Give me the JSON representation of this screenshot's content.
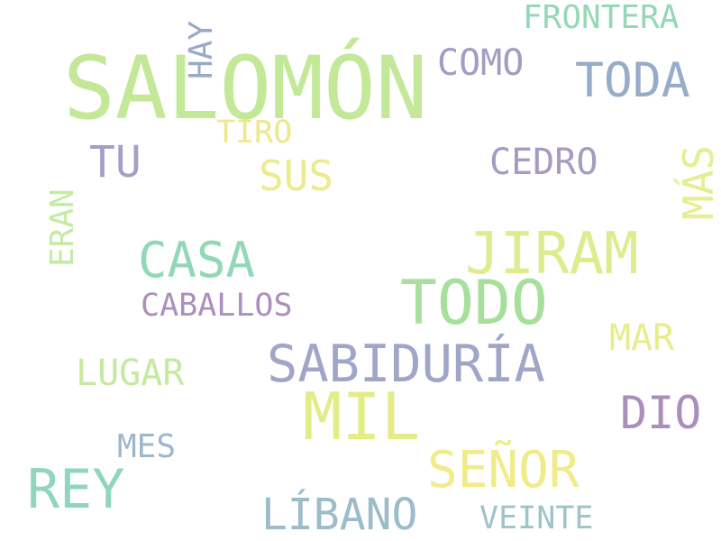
{
  "words": {
    "salomon": {
      "text": "SALOMÓN",
      "color": "#c2e898"
    },
    "todo": {
      "text": "TODO",
      "color": "#a8df9c"
    },
    "jiram": {
      "text": "JIRAM",
      "color": "#dfec8d"
    },
    "sabiduria": {
      "text": "SABIDURÍA",
      "color": "#9fa6c8"
    },
    "mil": {
      "text": "MIL",
      "color": "#e3ed87"
    },
    "casa": {
      "text": "CASA",
      "color": "#90d8b8"
    },
    "rey": {
      "text": "REY",
      "color": "#90d6bc"
    },
    "senor": {
      "text": "SEÑOR",
      "color": "#f0ec89"
    },
    "toda": {
      "text": "TODA",
      "color": "#95adc8"
    },
    "libano": {
      "text": "LÍBANO",
      "color": "#9bbcc8"
    },
    "dio": {
      "text": "DIO",
      "color": "#a98fba"
    },
    "tu": {
      "text": "TU",
      "color": "#a69ec4"
    },
    "sus": {
      "text": "SUS",
      "color": "#ebeb8f"
    },
    "cedro": {
      "text": "CEDRO",
      "color": "#a79bc0"
    },
    "como": {
      "text": "COMO",
      "color": "#a19dc4"
    },
    "frontera": {
      "text": "FRONTERA",
      "color": "#94d8b8"
    },
    "lugar": {
      "text": "LUGAR",
      "color": "#c6e9a0"
    },
    "caballos": {
      "text": "CABALLOS",
      "color": "#ab8fbc"
    },
    "mar": {
      "text": "MAR",
      "color": "#e7ed8e"
    },
    "mes": {
      "text": "MES",
      "color": "#9eb7cc"
    },
    "veinte": {
      "text": "VEINTE",
      "color": "#9ec4c8"
    },
    "tiro": {
      "text": "TIRO",
      "color": "#ece88d"
    },
    "hay": {
      "text": "HAY",
      "color": "#99a9c8"
    },
    "eran": {
      "text": "ERAN",
      "color": "#c3eba1"
    },
    "mas": {
      "text": "MÁS",
      "color": "#e4ee92"
    }
  }
}
